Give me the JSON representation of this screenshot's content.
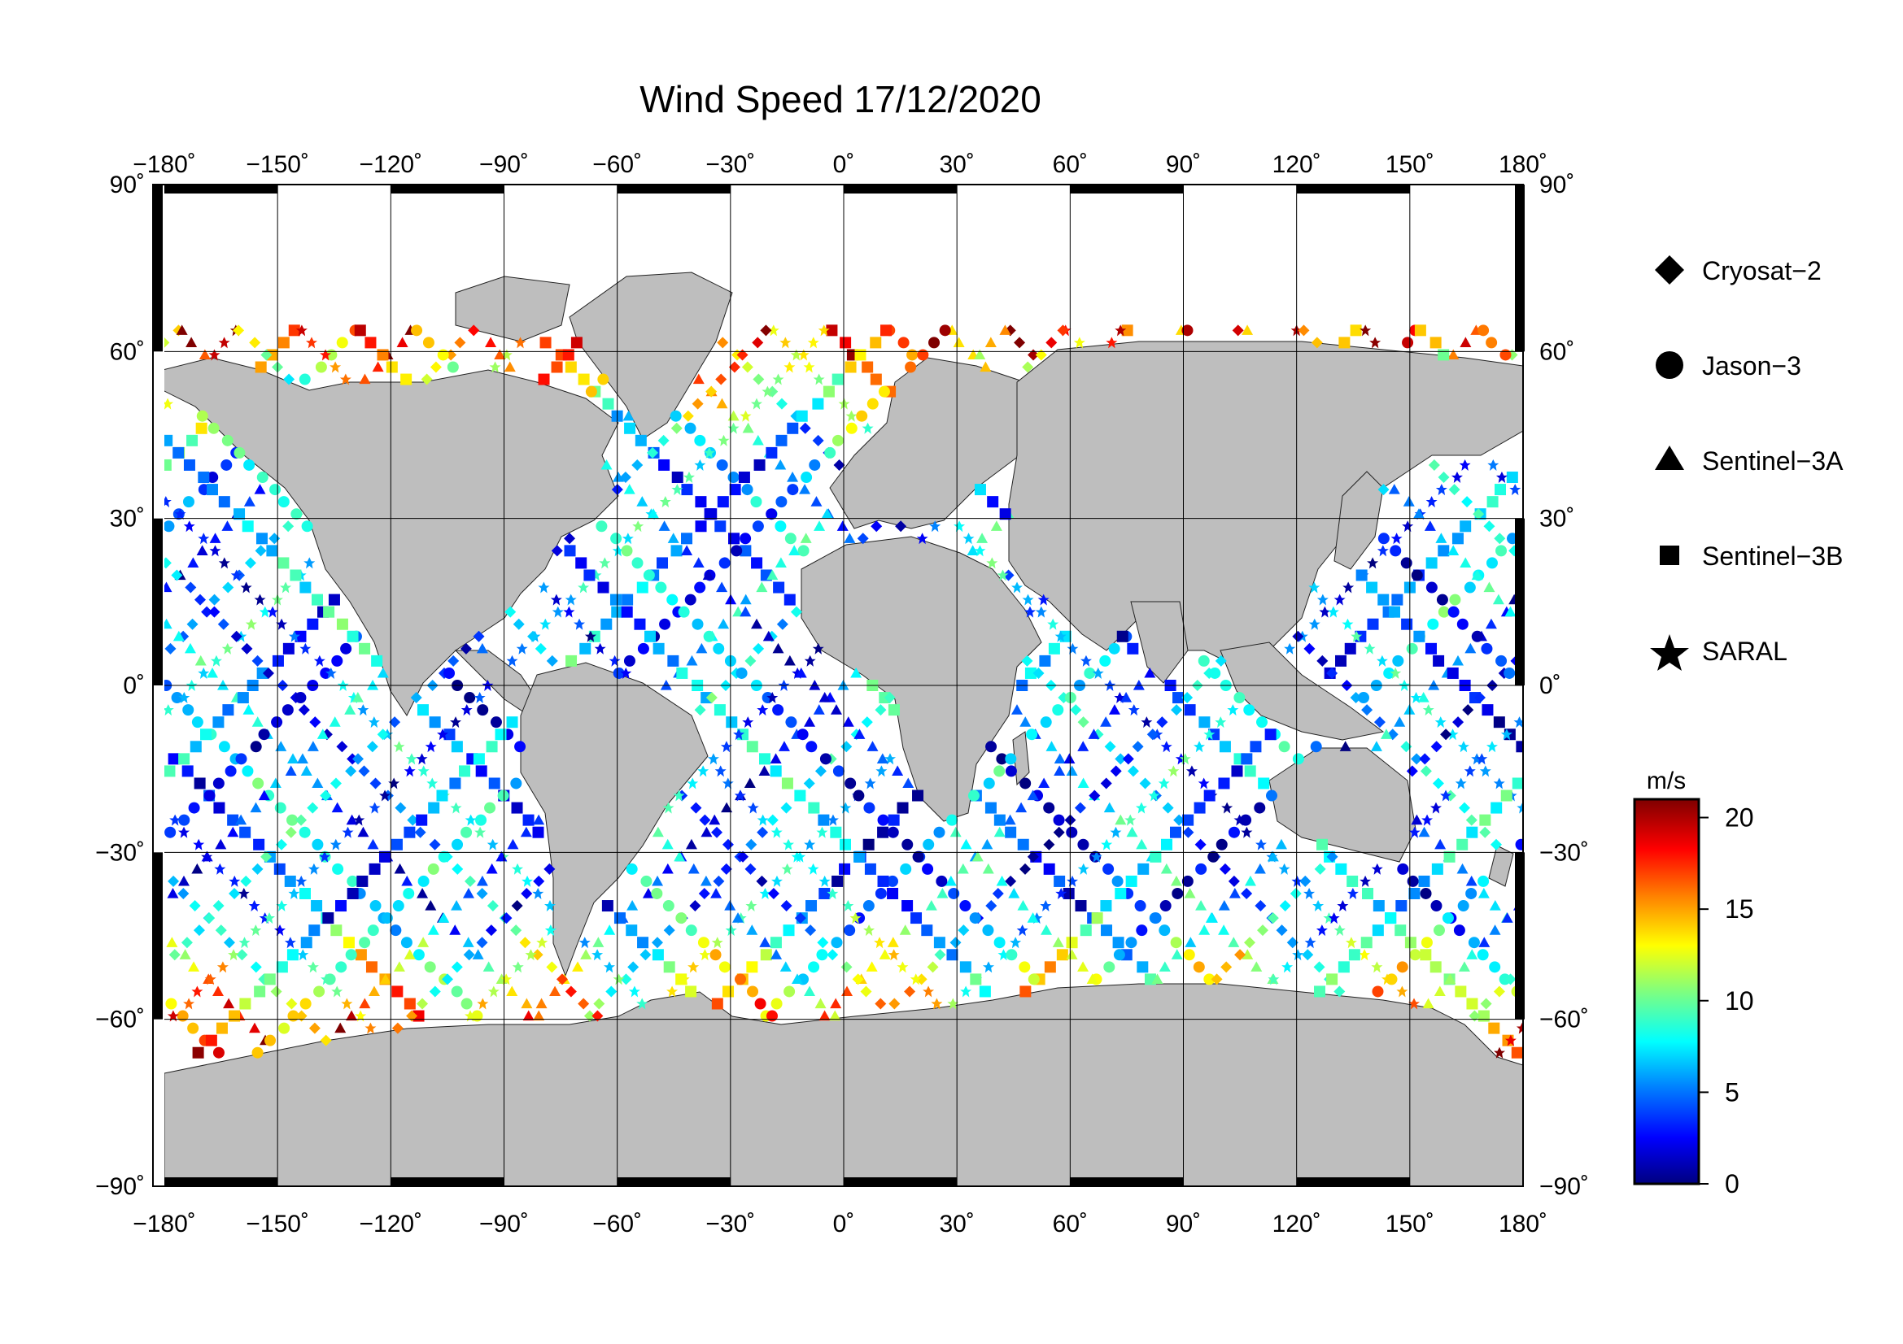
{
  "title": "Wind Speed 17/12/2020",
  "axes": {
    "lon_ticks": [
      "−180˚",
      "−150˚",
      "−120˚",
      "−90˚",
      "−60˚",
      "−30˚",
      "0˚",
      "30˚",
      "60˚",
      "90˚",
      "120˚",
      "150˚",
      "180˚"
    ],
    "lat_ticks_left": [
      "90˚",
      "60˚",
      "30˚",
      "0˚",
      "−30˚",
      "−60˚",
      "−90˚"
    ],
    "lat_ticks_right": [
      "90˚",
      "60˚",
      "30˚",
      "0˚",
      "−30˚",
      "−60˚",
      "−90˚"
    ],
    "lon_range": [
      -180,
      180
    ],
    "lat_range": [
      -90,
      90
    ]
  },
  "legend": {
    "placement": "right",
    "items": [
      {
        "label": "Cryosat−2",
        "marker": "diamond"
      },
      {
        "label": "Jason−3",
        "marker": "circle"
      },
      {
        "label": "Sentinel−3A",
        "marker": "triangle"
      },
      {
        "label": "Sentinel−3B",
        "marker": "square"
      },
      {
        "label": "SARAL",
        "marker": "star"
      }
    ]
  },
  "colorbar": {
    "unit": "m/s",
    "range": [
      0,
      21
    ],
    "ticks": [
      "20",
      "15",
      "10",
      "5",
      "0"
    ],
    "colormap": [
      "#00007f",
      "#0000ff",
      "#007fff",
      "#00ffff",
      "#7fff7f",
      "#ffff00",
      "#ff7f00",
      "#ff0000",
      "#7f0000"
    ]
  },
  "colors": {
    "land": "#bebebe",
    "ocean": "#ffffff",
    "grid": "#000000"
  },
  "chart_data": {
    "type": "scatter",
    "title": "Wind Speed 17/12/2020",
    "x_range": [
      -180,
      180
    ],
    "y_range": [
      -90,
      90
    ],
    "note_value_unit": "m/s",
    "series": [
      {
        "name": "Cryosat−2",
        "marker": "diamond"
      },
      {
        "name": "Jason−3",
        "marker": "circle"
      },
      {
        "name": "Sentinel−3A",
        "marker": "triangle"
      },
      {
        "name": "Sentinel−3B",
        "marker": "square"
      },
      {
        "name": "SARAL",
        "marker": "star"
      }
    ]
  }
}
